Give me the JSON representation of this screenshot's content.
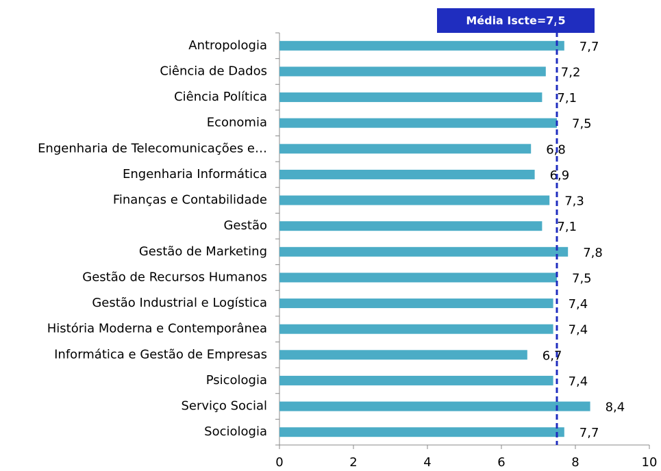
{
  "chart_data": {
    "type": "bar",
    "orientation": "horizontal",
    "categories": [
      "Antropologia",
      "Ciência de Dados",
      "Ciência Política",
      "Economia",
      "Engenharia de Telecomunicações e…",
      "Engenharia Informática",
      "Finanças e Contabilidade",
      "Gestão",
      "Gestão de Marketing",
      "Gestão de Recursos Humanos",
      "Gestão Industrial e Logística",
      "História Moderna e Contemporânea",
      "Informática e Gestão de Empresas",
      "Psicologia",
      "Serviço Social",
      "Sociologia"
    ],
    "values": [
      7.7,
      7.2,
      7.1,
      7.5,
      6.8,
      6.9,
      7.3,
      7.1,
      7.8,
      7.5,
      7.4,
      7.4,
      6.7,
      7.4,
      8.4,
      7.7
    ],
    "value_labels": [
      "7,7",
      "7,2",
      "7,1",
      "7,5",
      "6,8",
      "6,9",
      "7,3",
      "7,1",
      "7,8",
      "7,5",
      "7,4",
      "7,4",
      "6,7",
      "7,4",
      "8,4",
      "7,7"
    ],
    "color": "#4bacc6",
    "xlim": [
      0,
      10
    ],
    "xticks": [
      0,
      2,
      4,
      6,
      8,
      10
    ],
    "reference_line": {
      "value": 7.5,
      "label": "Média Iscte=7,5",
      "color": "#1f2dbf"
    }
  }
}
